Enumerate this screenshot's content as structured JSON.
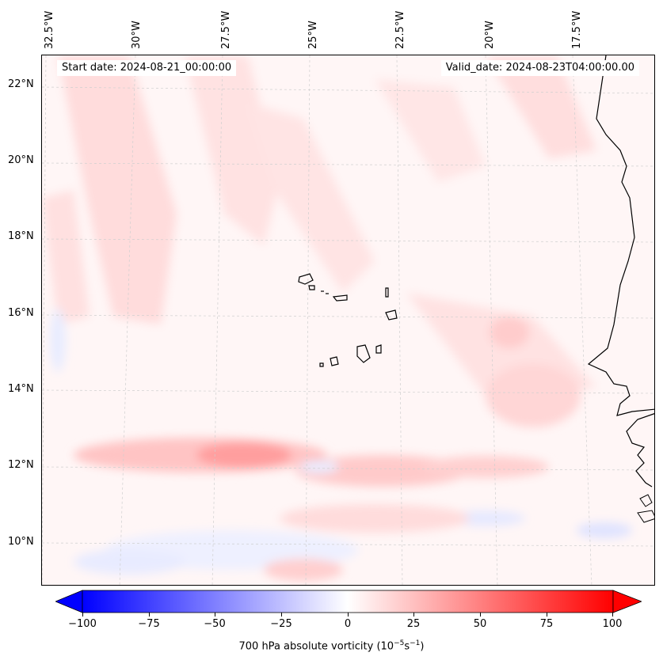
{
  "map": {
    "start_date": "Start date: 2024-08-21_00:00:00",
    "valid_date": "Valid_date: 2024-08-23T04:00:00.00",
    "lon_labels": [
      "32.5°W",
      "30°W",
      "27.5°W",
      "25°W",
      "22.5°W",
      "20°W",
      "17.5°W"
    ],
    "lat_labels": [
      "22°N",
      "20°N",
      "18°N",
      "16°N",
      "14°N",
      "12°N",
      "10°N"
    ],
    "field": "700 hPa absolute vorticity"
  },
  "colorbar": {
    "label_prefix": "700 hPa absolute vorticity (10",
    "label_exp1": "−5",
    "label_mid": "s",
    "label_exp2": "−1",
    "label_suffix": ")",
    "ticks": [
      "−100",
      "−75",
      "−50",
      "−25",
      "0",
      "25",
      "50",
      "75",
      "100"
    ],
    "min": -100,
    "max": 100,
    "neg_color": "#0000ff",
    "pos_color": "#ff0000"
  }
}
